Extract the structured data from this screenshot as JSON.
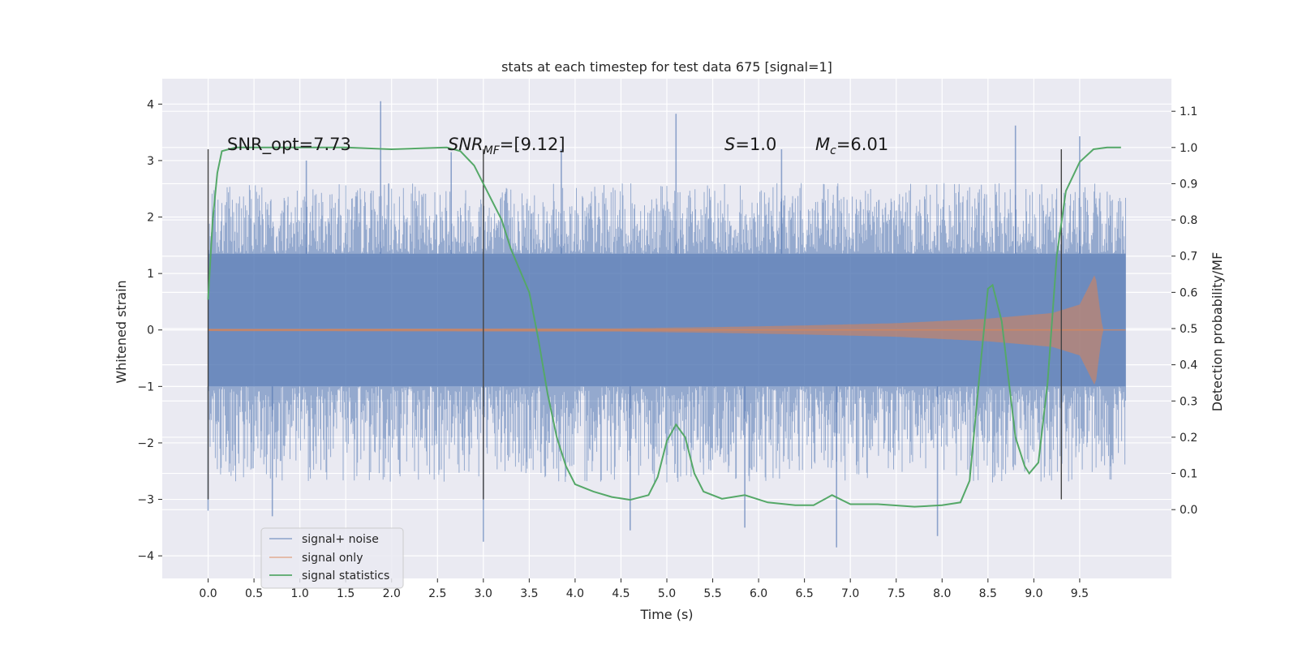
{
  "chart_data": {
    "type": "line",
    "title": "stats at each timestep for test data 675 [signal=1]",
    "xlabel": "Time (s)",
    "ylabel_left": "Whitened strain",
    "ylabel_right": "Detection probability/MF",
    "xlim": [
      -0.5,
      10.5
    ],
    "ylim_left": [
      -4.4,
      4.45
    ],
    "ylim_right": [
      -0.19,
      1.19
    ],
    "x_ticks": [
      "0.0",
      "0.5",
      "1.0",
      "1.5",
      "2.0",
      "2.5",
      "3.0",
      "3.5",
      "4.0",
      "4.5",
      "5.0",
      "5.5",
      "6.0",
      "6.5",
      "7.0",
      "7.5",
      "8.0",
      "8.5",
      "9.0",
      "9.5"
    ],
    "y_ticks_left": [
      "4",
      "3",
      "2",
      "1",
      "0",
      "−1",
      "−2",
      "−3",
      "−4"
    ],
    "y_ticks_right": [
      "1.1",
      "1.0",
      "0.9",
      "0.8",
      "0.7",
      "0.6",
      "0.5",
      "0.4",
      "0.3",
      "0.2",
      "0.1",
      "0.0"
    ],
    "grid": true,
    "legend_position": "bottom-left",
    "colors": {
      "background": "#eaeaf2",
      "grid": "#ffffff",
      "noise": "#4c72b0",
      "signal": "#dd8452",
      "stats": "#55a868",
      "marker": "#444444"
    },
    "annotations": {
      "snr_opt": "SNR_opt=7.73",
      "snr_mf_main": "SNR",
      "snr_mf_sub": "MF",
      "snr_mf_value": "=[9.12]",
      "s_main": "S",
      "s_value": "=1.0",
      "mc_main": "M",
      "mc_sub": "c",
      "mc_value": "=6.01"
    },
    "vertical_markers": {
      "x": [
        0.0,
        3.0,
        9.3
      ],
      "y_range": [
        -3.0,
        3.2
      ]
    },
    "series": [
      {
        "name": "signal+ noise",
        "style": "noise-band",
        "x_range": [
          0.0,
          10.0
        ],
        "core_range": [
          -1.0,
          1.35
        ],
        "typical_peak_range": [
          -2.7,
          2.6
        ],
        "spikes": [
          {
            "x": 0.0,
            "y": -3.2
          },
          {
            "x": 0.7,
            "y": -3.3
          },
          {
            "x": 1.07,
            "y": 3.0
          },
          {
            "x": 1.88,
            "y": 4.05
          },
          {
            "x": 2.65,
            "y": 3.15
          },
          {
            "x": 3.0,
            "y": -3.75
          },
          {
            "x": 3.85,
            "y": 3.2
          },
          {
            "x": 4.6,
            "y": -3.55
          },
          {
            "x": 5.1,
            "y": 3.83
          },
          {
            "x": 5.85,
            "y": -3.5
          },
          {
            "x": 6.25,
            "y": 3.2
          },
          {
            "x": 6.85,
            "y": -3.85
          },
          {
            "x": 7.95,
            "y": -3.65
          },
          {
            "x": 8.8,
            "y": 3.62
          },
          {
            "x": 9.5,
            "y": 3.43
          }
        ]
      },
      {
        "name": "signal only",
        "style": "chirp",
        "x_range": [
          0.0,
          10.0
        ],
        "merger_time": 9.67,
        "envelope": [
          {
            "x": 0.0,
            "amp": 0.02
          },
          {
            "x": 4.5,
            "amp": 0.03
          },
          {
            "x": 5.5,
            "amp": 0.05
          },
          {
            "x": 6.5,
            "amp": 0.08
          },
          {
            "x": 7.5,
            "amp": 0.12
          },
          {
            "x": 8.5,
            "amp": 0.2
          },
          {
            "x": 9.2,
            "amp": 0.3
          },
          {
            "x": 9.5,
            "amp": 0.45
          },
          {
            "x": 9.67,
            "amp": 1.0
          },
          {
            "x": 9.75,
            "amp": 0.0
          },
          {
            "x": 10.0,
            "amp": 0.0
          }
        ]
      },
      {
        "name": "signal statistics",
        "style": "line",
        "points": [
          {
            "x": 0.0,
            "y": 0.58
          },
          {
            "x": 0.05,
            "y": 0.8
          },
          {
            "x": 0.1,
            "y": 0.93
          },
          {
            "x": 0.15,
            "y": 0.99
          },
          {
            "x": 0.3,
            "y": 1.0
          },
          {
            "x": 1.5,
            "y": 1.0
          },
          {
            "x": 2.0,
            "y": 0.995
          },
          {
            "x": 2.6,
            "y": 1.0
          },
          {
            "x": 2.75,
            "y": 0.99
          },
          {
            "x": 2.9,
            "y": 0.95
          },
          {
            "x": 3.0,
            "y": 0.9
          },
          {
            "x": 3.2,
            "y": 0.8
          },
          {
            "x": 3.3,
            "y": 0.72
          },
          {
            "x": 3.5,
            "y": 0.6
          },
          {
            "x": 3.6,
            "y": 0.47
          },
          {
            "x": 3.7,
            "y": 0.32
          },
          {
            "x": 3.8,
            "y": 0.2
          },
          {
            "x": 3.9,
            "y": 0.12
          },
          {
            "x": 4.0,
            "y": 0.07
          },
          {
            "x": 4.2,
            "y": 0.05
          },
          {
            "x": 4.4,
            "y": 0.035
          },
          {
            "x": 4.6,
            "y": 0.027
          },
          {
            "x": 4.8,
            "y": 0.04
          },
          {
            "x": 4.9,
            "y": 0.09
          },
          {
            "x": 5.0,
            "y": 0.19
          },
          {
            "x": 5.1,
            "y": 0.235
          },
          {
            "x": 5.2,
            "y": 0.2
          },
          {
            "x": 5.3,
            "y": 0.1
          },
          {
            "x": 5.4,
            "y": 0.05
          },
          {
            "x": 5.6,
            "y": 0.03
          },
          {
            "x": 5.85,
            "y": 0.04
          },
          {
            "x": 6.1,
            "y": 0.02
          },
          {
            "x": 6.4,
            "y": 0.012
          },
          {
            "x": 6.6,
            "y": 0.012
          },
          {
            "x": 6.8,
            "y": 0.04
          },
          {
            "x": 7.0,
            "y": 0.015
          },
          {
            "x": 7.3,
            "y": 0.015
          },
          {
            "x": 7.7,
            "y": 0.008
          },
          {
            "x": 8.0,
            "y": 0.012
          },
          {
            "x": 8.2,
            "y": 0.02
          },
          {
            "x": 8.3,
            "y": 0.08
          },
          {
            "x": 8.4,
            "y": 0.35
          },
          {
            "x": 8.5,
            "y": 0.61
          },
          {
            "x": 8.55,
            "y": 0.62
          },
          {
            "x": 8.65,
            "y": 0.52
          },
          {
            "x": 8.8,
            "y": 0.2
          },
          {
            "x": 8.9,
            "y": 0.12
          },
          {
            "x": 8.95,
            "y": 0.1
          },
          {
            "x": 9.05,
            "y": 0.13
          },
          {
            "x": 9.15,
            "y": 0.35
          },
          {
            "x": 9.25,
            "y": 0.7
          },
          {
            "x": 9.35,
            "y": 0.88
          },
          {
            "x": 9.5,
            "y": 0.96
          },
          {
            "x": 9.65,
            "y": 0.995
          },
          {
            "x": 9.8,
            "y": 1.0
          },
          {
            "x": 9.95,
            "y": 1.0
          }
        ]
      }
    ]
  }
}
